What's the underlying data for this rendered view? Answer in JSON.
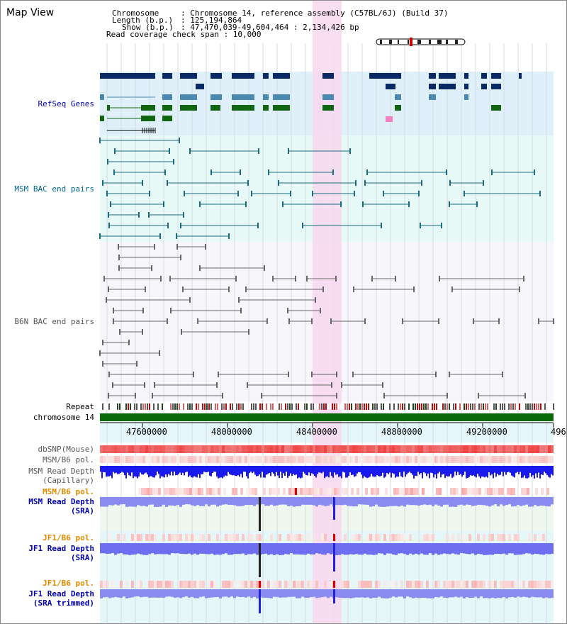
{
  "view_title": "Map View",
  "info": {
    "chromosome_key": "Chromosome",
    "chromosome_val": ": Chromosome 14, reference assembly (C57BL/6J) (Build 37)",
    "length_key": "Length (b.p.)",
    "length_val": ": 125,194,864",
    "show_key": "Show (b.p.)",
    "show_val": ": 47,470,039-49,604,464 : 2,134,426 bp",
    "coverage": "Read coverage check span : 10,000"
  },
  "tracks": {
    "refseq": "RefSeq Genes",
    "msm_bac": "MSM BAC end pairs",
    "b6n_bac": "B6N BAC end pairs",
    "repeat": "Repeat",
    "chromosome": "chromosome 14",
    "dbsnp": "dbSNP(Mouse)",
    "msm_b6_pol_1": "MSM/B6 pol.",
    "msm_read_depth_cap_1": "MSM Read Depth",
    "msm_read_depth_cap_2": "(Capillary)",
    "msm_b6_pol_2": "MSM/B6 pol.",
    "msm_read_depth_sra_1": "MSM Read Depth",
    "msm_read_depth_sra_2": "(SRA)",
    "jf1_b6_pol_1": "JF1/B6 pol.",
    "jf1_read_depth_sra_1": "JF1 Read Depth",
    "jf1_read_depth_sra_2": "(SRA)",
    "jf1_b6_pol_2": "JF1/B6 pol.",
    "jf1_trimmed_1": "JF1 Read Depth",
    "jf1_trimmed_2": "(SRA trimmed)"
  },
  "axis_ticks": [
    "47600000",
    "48000000",
    "48400000",
    "48800000",
    "49200000",
    "496"
  ],
  "colors": {
    "refseq_label": "#0000aa",
    "msm_label": "#006688",
    "b6n_label": "#555555",
    "orange_label": "#e08a00",
    "blue_label": "#0000aa",
    "highlight": "#f8d8f0",
    "chromosome_bar": "#0a6a0a",
    "depth_blue": "#1a1aee",
    "depth_lav": "#8a8af0"
  }
}
